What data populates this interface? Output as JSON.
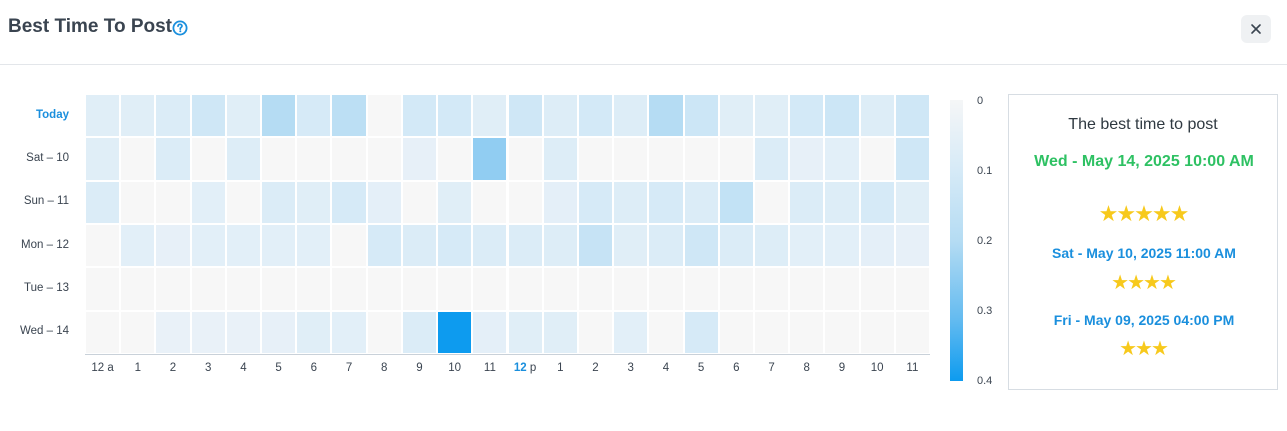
{
  "header": {
    "title": "Best Time To Post",
    "help_icon": "question-circle-icon",
    "close_icon": "close-icon"
  },
  "colors": {
    "accent": "#1a8fdd",
    "best": "#2ec163",
    "star": "#f7c91c",
    "empty_cell": "#f7f7f7",
    "scale_max": "#0d9bef"
  },
  "heatmap": {
    "rows": [
      "Today",
      "Sat - 10",
      "Sun - 11",
      "Mon - 12",
      "Tue - 13",
      "Wed - 14"
    ],
    "columns": [
      "12 a",
      "1",
      "2",
      "3",
      "4",
      "5",
      "6",
      "7",
      "8",
      "9",
      "10",
      "11",
      "12 p",
      "1",
      "2",
      "3",
      "4",
      "5",
      "6",
      "7",
      "8",
      "9",
      "10",
      "11"
    ],
    "columns_highlight": "12",
    "columns_highlight_suffix": "p",
    "scale_labels": [
      "0",
      "0.1",
      "0.2",
      "0.3",
      "0.4"
    ],
    "scale_range": [
      0,
      0.4
    ],
    "values": [
      [
        0.06,
        0.06,
        0.08,
        0.12,
        0.06,
        0.2,
        0.1,
        0.18,
        0.0,
        0.11,
        0.11,
        0.06,
        0.12,
        0.07,
        0.11,
        0.07,
        0.2,
        0.13,
        0.06,
        0.06,
        0.11,
        0.13,
        0.07,
        0.12
      ],
      [
        0.06,
        0.0,
        0.08,
        0.0,
        0.07,
        0.0,
        0.0,
        0.0,
        0.0,
        0.03,
        0.0,
        0.25,
        0.0,
        0.07,
        0.0,
        0.0,
        0.0,
        0.0,
        0.0,
        0.08,
        0.03,
        0.05,
        0.0,
        0.12
      ],
      [
        0.08,
        0.0,
        0.0,
        0.05,
        0.0,
        0.08,
        0.06,
        0.1,
        0.04,
        0.0,
        0.06,
        0.0,
        0.0,
        0.04,
        0.1,
        0.07,
        0.1,
        0.08,
        0.16,
        0.0,
        0.08,
        0.07,
        0.1,
        0.06
      ],
      [
        0.0,
        0.05,
        0.03,
        0.05,
        0.05,
        0.05,
        0.05,
        0.0,
        0.1,
        0.08,
        0.1,
        0.08,
        0.08,
        0.07,
        0.15,
        0.06,
        0.08,
        0.12,
        0.08,
        0.07,
        0.05,
        0.05,
        0.04,
        0.03
      ],
      [
        0.0,
        0.0,
        0.0,
        0.0,
        0.0,
        0.0,
        0.0,
        0.0,
        0.0,
        0.0,
        0.0,
        0.0,
        0.0,
        0.0,
        0.0,
        0.0,
        0.0,
        0.0,
        0.0,
        0.0,
        0.0,
        0.0,
        0.0,
        0.0
      ],
      [
        0.0,
        0.0,
        0.02,
        0.02,
        0.02,
        0.03,
        0.06,
        0.05,
        0.0,
        0.08,
        0.4,
        0.04,
        0.06,
        0.06,
        0.0,
        0.05,
        0.0,
        0.1,
        0.0,
        0.0,
        0.0,
        0.0,
        0.0,
        0.0
      ]
    ]
  },
  "best_panel": {
    "title": "The best time to post",
    "entries": [
      {
        "text": "Wed - May 14, 2025 10:00 AM",
        "stars": 5
      },
      {
        "text": "Sat - May 10, 2025 11:00 AM",
        "stars": 4
      },
      {
        "text": "Fri - May 09, 2025 04:00 PM",
        "stars": 3
      }
    ]
  }
}
